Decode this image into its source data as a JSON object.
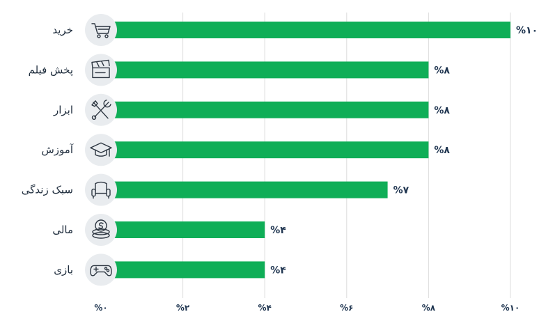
{
  "chart_data": {
    "type": "bar",
    "orientation": "horizontal",
    "categories": [
      "خرید",
      "پخش فیلم",
      "ابزار",
      "آموزش",
      "سبک زندگی",
      "مالی",
      "بازی"
    ],
    "values": [
      10,
      8,
      8,
      8,
      7,
      4,
      4
    ],
    "value_labels": [
      "%۱۰",
      "%۸",
      "%۸",
      "%۸",
      "%۷",
      "%۴",
      "%۴"
    ],
    "icons": [
      "shopping-cart-icon",
      "clapperboard-icon",
      "tools-icon",
      "graduation-cap-icon",
      "armchair-icon",
      "coins-icon",
      "gamepad-icon"
    ],
    "xlim": [
      0,
      10
    ],
    "ticks": [
      0,
      2,
      4,
      6,
      8,
      10
    ],
    "tick_labels": [
      "%۰",
      "%۲",
      "%۴",
      "%۶",
      "%۸",
      "%۱۰"
    ],
    "grid": true,
    "colors": {
      "bar": "#0fae57",
      "grid": "#dcdcdc",
      "text": "#1f3550",
      "icon_bg": "#e9ecef"
    }
  }
}
